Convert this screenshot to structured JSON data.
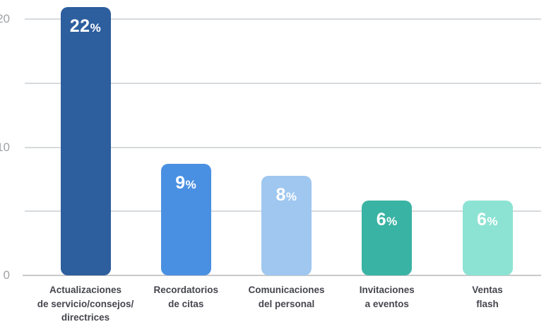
{
  "chart_data": {
    "type": "bar",
    "title": "",
    "categories": [
      [
        "Actualizaciones",
        "de servicio/consejos/",
        "directrices"
      ],
      [
        "Recordatorios",
        "de citas"
      ],
      [
        "Comunicaciones",
        "del personal"
      ],
      [
        "Invitaciones",
        "a eventos"
      ],
      [
        "Ventas",
        "flash"
      ]
    ],
    "values": [
      22,
      9,
      8,
      6,
      6
    ],
    "value_labels": [
      "22",
      "9",
      "8",
      "6",
      "6"
    ],
    "value_suffix": "%",
    "bar_colors": [
      "#2d5e9e",
      "#4a90e2",
      "#9fc7f0",
      "#39b3a3",
      "#8ce3d3"
    ],
    "yticks": [
      {
        "value": 0,
        "label": "0"
      },
      {
        "value": 10,
        "label": "10"
      },
      {
        "value": 20,
        "label": "20"
      }
    ],
    "gridline_values": [
      5,
      10,
      15,
      20
    ],
    "ylim": [
      0,
      20
    ],
    "grid": true,
    "legend": "none",
    "value_label_color": "#ffffff",
    "category_label_color": "#45464e",
    "axis_label_color": "#9fa1a5",
    "gridline_color": "#d7dadd",
    "baseline_color": "#c7c9cb"
  }
}
